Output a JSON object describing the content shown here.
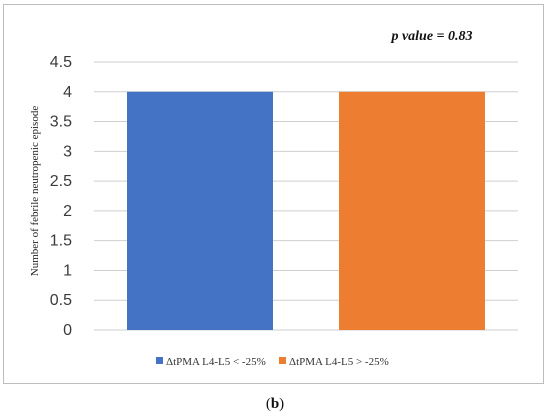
{
  "chart_data": {
    "type": "bar",
    "categories": [
      "ΔtPMA L4-L5 < -25%",
      "ΔtPMA L4-L5 > -25%"
    ],
    "values": [
      4,
      4
    ],
    "colors": [
      "#4472c4",
      "#ed7d31"
    ],
    "ylabel": "Number of febrile neutropenic episode",
    "ylim": [
      0,
      4.5
    ],
    "yticks": [
      "0",
      "0.5",
      "1",
      "1.5",
      "2",
      "2.5",
      "3",
      "3.5",
      "4",
      "4.5"
    ],
    "grid": true,
    "legend_position": "bottom",
    "annotation": "p value = 0.83"
  },
  "caption": {
    "open": "(",
    "letter": "b",
    "close": ")"
  }
}
